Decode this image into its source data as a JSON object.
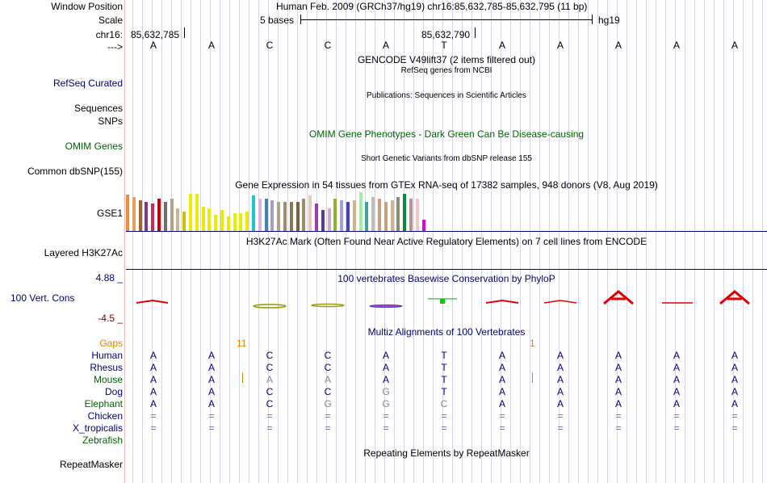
{
  "header": {
    "window_position_label": "Window Position",
    "window_position_value": "Human Feb. 2009 (GRCh37/hg19)   chr16:85,632,785-85,632,795 (11 bp)",
    "scale_label": "Scale",
    "scale_value": "5 bases",
    "scale_assembly": "hg19",
    "chrom_label": "chr16:",
    "coord_left": "85,632,785",
    "coord_mid": "85,632,790",
    "strand_label": "--->",
    "bases": [
      "A",
      "A",
      "C",
      "C",
      "A",
      "T",
      "A",
      "A",
      "A",
      "A",
      "A"
    ]
  },
  "tracks": {
    "gencode_title": "GENCODE V49lift37 (2 items filtered out)",
    "refseq_label": "RefSeq Curated",
    "refseq_title": "RefSeq genes from NCBI",
    "publications_title": "Publications: Sequences in Scientific Articles",
    "sequences_label": "Sequences",
    "snps_label": "SNPs",
    "omim_label": "OMIM Genes",
    "omim_title": "OMIM Gene Phenotypes - Dark Green Can Be Disease-causing",
    "dbsnp_title": "Short Genetic Variants from dbSNP release 155",
    "dbsnp_label": "Common dbSNP(155)",
    "gtex_title": "Gene Expression in 54 tissues from GTEx RNA-seq of 17382 samples, 948 donors (V8, Aug 2019)",
    "gtex_label": "GSE1",
    "h3k27ac_title": "H3K27Ac Mark (Often Found Near Active Regulatory Elements) on 7 cell lines from ENCODE",
    "h3k27ac_label": "Layered H3K27Ac",
    "phylop_max": "4.88 _",
    "phylop_title": "100 vertebrates Basewise Conservation by PhyloP",
    "phylop_label": "100 Vert. Cons",
    "phylop_min": "-4.5 _",
    "multiz_title": "Multiz Alignments of 100 Vertebrates",
    "gaps_label": "Gaps",
    "gap_counts": [
      "11",
      "1"
    ],
    "repeat_title": "Repeating Elements by RepeatMasker",
    "repeat_label": "RepeatMasker"
  },
  "species": [
    {
      "name": "Human",
      "bases": [
        "A",
        "A",
        "C",
        "C",
        "A",
        "T",
        "A",
        "A",
        "A",
        "A",
        "A"
      ]
    },
    {
      "name": "Rhesus",
      "bases": [
        "A",
        "A",
        "C",
        "C",
        "A",
        "T",
        "A",
        "A",
        "A",
        "A",
        "A"
      ]
    },
    {
      "name": "Mouse",
      "bases": [
        "A",
        "A",
        "A",
        "A",
        "A",
        "T",
        "A",
        "A",
        "A",
        "A",
        "A"
      ]
    },
    {
      "name": "Dog",
      "bases": [
        "A",
        "A",
        "C",
        "C",
        "G",
        "T",
        "A",
        "A",
        "A",
        "A",
        "A"
      ]
    },
    {
      "name": "Elephant",
      "bases": [
        "A",
        "A",
        "C",
        "G",
        "G",
        "C",
        "A",
        "A",
        "A",
        "A",
        "A"
      ]
    },
    {
      "name": "Chicken",
      "bases": [
        "=",
        "=",
        "=",
        "=",
        "=",
        "=",
        "=",
        "=",
        "=",
        "=",
        "="
      ]
    },
    {
      "name": "X_tropicalis",
      "bases": [
        "=",
        "=",
        "=",
        "=",
        "=",
        "=",
        "=",
        "=",
        "=",
        "=",
        "="
      ]
    },
    {
      "name": "Zebrafish",
      "bases": []
    }
  ],
  "colors": {
    "navy": "#000080",
    "green": "#006400",
    "gaps_orange": "#e08000",
    "phylop_red": "#e00000",
    "phylop_green": "#00aa00",
    "mismatch_gray": "#888888"
  },
  "gtex_bars": [
    {
      "h": 45,
      "c": "#f08c3c"
    },
    {
      "h": 42,
      "c": "#e8a060"
    },
    {
      "h": 38,
      "c": "#a06428"
    },
    {
      "h": 36,
      "c": "#783c8c"
    },
    {
      "h": 34,
      "c": "#cc2a58"
    },
    {
      "h": 40,
      "c": "#cc0000"
    },
    {
      "h": 36,
      "c": "#6e6e6e"
    },
    {
      "h": 40,
      "c": "#b4a08c"
    },
    {
      "h": 28,
      "c": "#d2b48c"
    },
    {
      "h": 24,
      "c": "#c8c000"
    },
    {
      "h": 46,
      "c": "#ebeb00"
    },
    {
      "h": 46,
      "c": "#ebeb00"
    },
    {
      "h": 30,
      "c": "#ebeb00"
    },
    {
      "h": 28,
      "c": "#ebeb00"
    },
    {
      "h": 20,
      "c": "#ebeb00"
    },
    {
      "h": 26,
      "c": "#ebeb00"
    },
    {
      "h": 18,
      "c": "#ebeb00"
    },
    {
      "h": 22,
      "c": "#ebeb00"
    },
    {
      "h": 22,
      "c": "#ebeb00"
    },
    {
      "h": 24,
      "c": "#ebeb00"
    },
    {
      "h": 44,
      "c": "#1ec8c8"
    },
    {
      "h": 40,
      "c": "#e0b4dc"
    },
    {
      "h": 40,
      "c": "#4682b4"
    },
    {
      "h": 38,
      "c": "#a0a0c8"
    },
    {
      "h": 36,
      "c": "#b4a08c"
    },
    {
      "h": 36,
      "c": "#a08c6e"
    },
    {
      "h": 36,
      "c": "#8c7850"
    },
    {
      "h": 36,
      "c": "#7a6440"
    },
    {
      "h": 40,
      "c": "#a08c6e"
    },
    {
      "h": 44,
      "c": "#e8c8b8"
    },
    {
      "h": 34,
      "c": "#9c3cb4"
    },
    {
      "h": 26,
      "c": "#5a3c8c"
    },
    {
      "h": 28,
      "c": "#d2aac8"
    },
    {
      "h": 40,
      "c": "#8cb428"
    },
    {
      "h": 38,
      "c": "#a0a0e0"
    },
    {
      "h": 36,
      "c": "#4040c8"
    },
    {
      "h": 38,
      "c": "#d2b48c"
    },
    {
      "h": 48,
      "c": "#a0f0a0"
    },
    {
      "h": 36,
      "c": "#40a0a0"
    },
    {
      "h": 42,
      "c": "#bebebe"
    },
    {
      "h": 40,
      "c": "#c8a080"
    },
    {
      "h": 36,
      "c": "#c8a080"
    },
    {
      "h": 38,
      "c": "#d2b48c"
    },
    {
      "h": 42,
      "c": "#8c8c6e"
    },
    {
      "h": 46,
      "c": "#008c3c"
    },
    {
      "h": 40,
      "c": "#c09090"
    },
    {
      "h": 40,
      "c": "#f0c8c8"
    },
    {
      "h": 14,
      "c": "#e000e0"
    }
  ]
}
